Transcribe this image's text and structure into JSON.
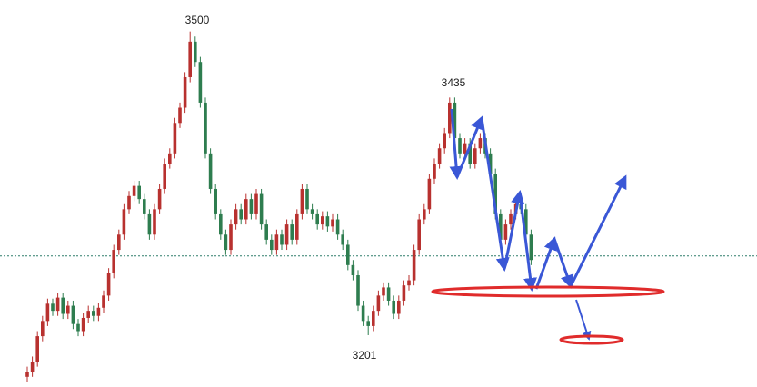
{
  "chart_data": {
    "type": "candlestick",
    "ylim": [
      3150,
      3531
    ],
    "reference_line": 3279,
    "up_color": "#b8312f",
    "down_color": "#2e7d4f",
    "labels": [
      3500,
      3435,
      3201
    ],
    "candles": [
      [
        3160,
        3170,
        3155,
        3165
      ],
      [
        3165,
        3180,
        3160,
        3175
      ],
      [
        3175,
        3205,
        3170,
        3200
      ],
      [
        3200,
        3220,
        3195,
        3215
      ],
      [
        3215,
        3237,
        3210,
        3232
      ],
      [
        3232,
        3237,
        3220,
        3225
      ],
      [
        3225,
        3243,
        3220,
        3238
      ],
      [
        3238,
        3243,
        3217,
        3222
      ],
      [
        3222,
        3235,
        3217,
        3230
      ],
      [
        3230,
        3235,
        3207,
        3212
      ],
      [
        3212,
        3217,
        3200,
        3205
      ],
      [
        3205,
        3223,
        3200,
        3218
      ],
      [
        3218,
        3230,
        3213,
        3225
      ],
      [
        3225,
        3230,
        3215,
        3220
      ],
      [
        3220,
        3233,
        3215,
        3228
      ],
      [
        3228,
        3245,
        3223,
        3240
      ],
      [
        3240,
        3267,
        3235,
        3262
      ],
      [
        3262,
        3290,
        3257,
        3285
      ],
      [
        3285,
        3305,
        3280,
        3300
      ],
      [
        3300,
        3330,
        3295,
        3325
      ],
      [
        3325,
        3343,
        3320,
        3338
      ],
      [
        3338,
        3353,
        3333,
        3348
      ],
      [
        3348,
        3353,
        3330,
        3335
      ],
      [
        3335,
        3340,
        3315,
        3320
      ],
      [
        3320,
        3325,
        3295,
        3300
      ],
      [
        3300,
        3330,
        3295,
        3325
      ],
      [
        3325,
        3350,
        3320,
        3345
      ],
      [
        3345,
        3375,
        3340,
        3370
      ],
      [
        3370,
        3385,
        3365,
        3380
      ],
      [
        3380,
        3415,
        3375,
        3410
      ],
      [
        3410,
        3430,
        3405,
        3425
      ],
      [
        3425,
        3460,
        3420,
        3455
      ],
      [
        3455,
        3500,
        3450,
        3490
      ],
      [
        3490,
        3495,
        3465,
        3470
      ],
      [
        3470,
        3475,
        3425,
        3430
      ],
      [
        3430,
        3435,
        3375,
        3380
      ],
      [
        3380,
        3385,
        3340,
        3345
      ],
      [
        3345,
        3350,
        3315,
        3320
      ],
      [
        3320,
        3325,
        3295,
        3300
      ],
      [
        3300,
        3305,
        3280,
        3285
      ],
      [
        3285,
        3315,
        3280,
        3310
      ],
      [
        3310,
        3330,
        3305,
        3325
      ],
      [
        3325,
        3330,
        3310,
        3315
      ],
      [
        3315,
        3340,
        3310,
        3335
      ],
      [
        3335,
        3340,
        3315,
        3320
      ],
      [
        3320,
        3345,
        3315,
        3340
      ],
      [
        3340,
        3345,
        3305,
        3310
      ],
      [
        3310,
        3315,
        3290,
        3295
      ],
      [
        3295,
        3300,
        3280,
        3285
      ],
      [
        3285,
        3305,
        3280,
        3300
      ],
      [
        3300,
        3305,
        3285,
        3290
      ],
      [
        3290,
        3315,
        3285,
        3310
      ],
      [
        3310,
        3315,
        3290,
        3295
      ],
      [
        3295,
        3325,
        3290,
        3320
      ],
      [
        3320,
        3350,
        3315,
        3345
      ],
      [
        3345,
        3350,
        3320,
        3325
      ],
      [
        3325,
        3330,
        3315,
        3320
      ],
      [
        3320,
        3325,
        3305,
        3310
      ],
      [
        3310,
        3323,
        3305,
        3318
      ],
      [
        3318,
        3323,
        3303,
        3308
      ],
      [
        3308,
        3320,
        3303,
        3315
      ],
      [
        3315,
        3320,
        3295,
        3300
      ],
      [
        3300,
        3305,
        3285,
        3290
      ],
      [
        3290,
        3295,
        3265,
        3270
      ],
      [
        3270,
        3275,
        3255,
        3260
      ],
      [
        3260,
        3265,
        3225,
        3230
      ],
      [
        3230,
        3235,
        3210,
        3215
      ],
      [
        3215,
        3220,
        3201,
        3210
      ],
      [
        3210,
        3230,
        3205,
        3225
      ],
      [
        3225,
        3245,
        3220,
        3240
      ],
      [
        3240,
        3253,
        3235,
        3248
      ],
      [
        3248,
        3253,
        3230,
        3235
      ],
      [
        3235,
        3240,
        3217,
        3222
      ],
      [
        3222,
        3240,
        3217,
        3235
      ],
      [
        3235,
        3255,
        3230,
        3250
      ],
      [
        3250,
        3260,
        3245,
        3255
      ],
      [
        3255,
        3290,
        3250,
        3285
      ],
      [
        3285,
        3320,
        3280,
        3315
      ],
      [
        3315,
        3330,
        3310,
        3325
      ],
      [
        3325,
        3360,
        3320,
        3355
      ],
      [
        3355,
        3375,
        3350,
        3370
      ],
      [
        3370,
        3390,
        3365,
        3385
      ],
      [
        3385,
        3405,
        3380,
        3400
      ],
      [
        3400,
        3435,
        3395,
        3430
      ],
      [
        3430,
        3435,
        3390,
        3395
      ],
      [
        3395,
        3400,
        3375,
        3380
      ],
      [
        3380,
        3395,
        3375,
        3390
      ],
      [
        3390,
        3395,
        3365,
        3370
      ],
      [
        3370,
        3390,
        3365,
        3385
      ],
      [
        3385,
        3400,
        3380,
        3395
      ],
      [
        3395,
        3400,
        3375,
        3380
      ],
      [
        3380,
        3385,
        3355,
        3360
      ],
      [
        3360,
        3365,
        3315,
        3320
      ],
      [
        3320,
        3325,
        3290,
        3295
      ],
      [
        3295,
        3315,
        3290,
        3310
      ],
      [
        3310,
        3325,
        3305,
        3320
      ],
      [
        3320,
        3335,
        3315,
        3330
      ],
      [
        3330,
        3335,
        3320,
        3325
      ],
      [
        3325,
        3330,
        3295,
        3300
      ],
      [
        3300,
        3305,
        3270,
        3275
      ]
    ]
  }
}
